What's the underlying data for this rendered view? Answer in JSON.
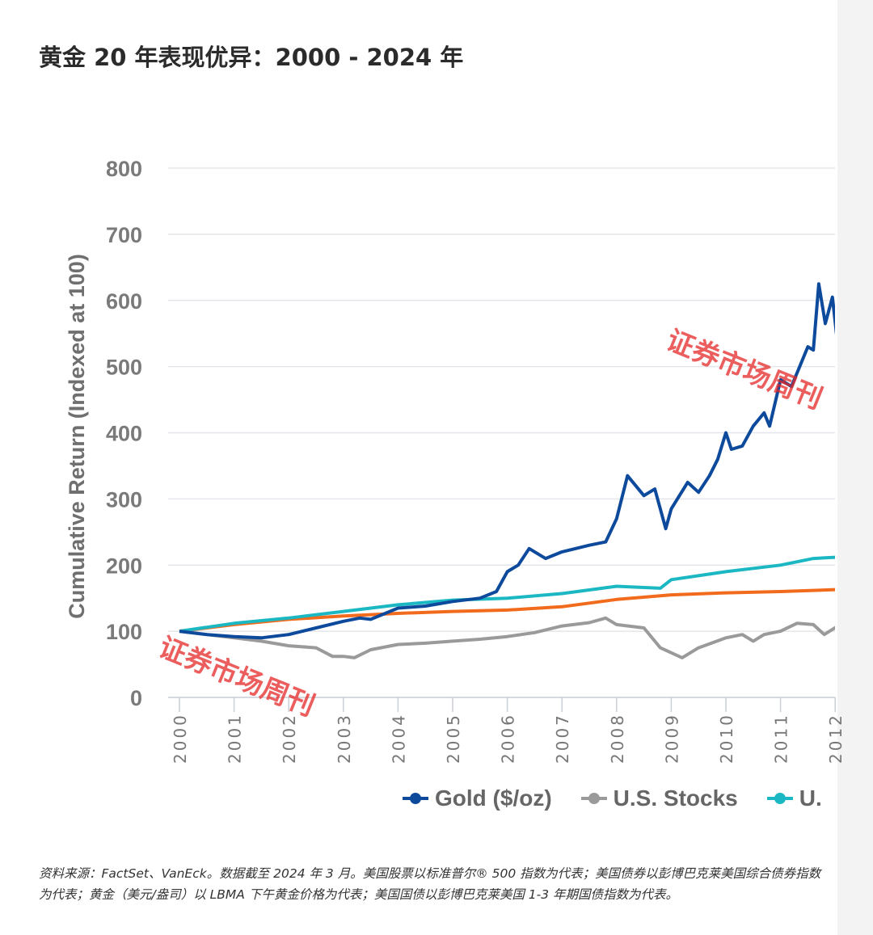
{
  "title": "黄金 20 年表现优异：2000 - 2024 年",
  "legend": [
    "Gold ($/oz)",
    "U.S. Stocks",
    "U."
  ],
  "note": "资料来源：FactSet、VanEck。数据截至 2024 年 3 月。美国股票以标准普尔® 500 指数为代表；美国债券以彭博巴克莱美国综合债券指数为代表；黄金（美元/盎司）以 LBMA 下午黄金价格为代表；美国国债以彭博巴克莱美国 1-3 年期国债指数为代表。",
  "watermark": "证券市场周刊",
  "chart_data": {
    "type": "line",
    "title": "",
    "xlabel": "",
    "ylabel": "Cumulative Return (Indexed at 100)",
    "ylim": [
      0,
      800
    ],
    "yticks": [
      0,
      100,
      200,
      300,
      400,
      500,
      600,
      700,
      800
    ],
    "xticks": [
      "2000",
      "2001",
      "2002",
      "2003",
      "2004",
      "2005",
      "2006",
      "2007",
      "2008",
      "2009",
      "2010",
      "2011",
      "2012"
    ],
    "grid": "horizontal",
    "legend_position": "bottom",
    "series": [
      {
        "name": "Gold ($/oz)",
        "color": "#0d4a9c",
        "points": [
          [
            2000,
            100
          ],
          [
            2000.5,
            95
          ],
          [
            2001,
            92
          ],
          [
            2001.5,
            90
          ],
          [
            2002,
            95
          ],
          [
            2002.5,
            105
          ],
          [
            2003,
            115
          ],
          [
            2003.3,
            120
          ],
          [
            2003.5,
            118
          ],
          [
            2004,
            135
          ],
          [
            2004.5,
            138
          ],
          [
            2005,
            145
          ],
          [
            2005.5,
            150
          ],
          [
            2005.8,
            160
          ],
          [
            2006,
            190
          ],
          [
            2006.2,
            200
          ],
          [
            2006.4,
            225
          ],
          [
            2006.7,
            210
          ],
          [
            2007,
            220
          ],
          [
            2007.5,
            230
          ],
          [
            2007.8,
            235
          ],
          [
            2008,
            270
          ],
          [
            2008.2,
            335
          ],
          [
            2008.5,
            305
          ],
          [
            2008.7,
            315
          ],
          [
            2008.9,
            255
          ],
          [
            2009,
            285
          ],
          [
            2009.3,
            325
          ],
          [
            2009.5,
            310
          ],
          [
            2009.7,
            335
          ],
          [
            2009.85,
            360
          ],
          [
            2010,
            400
          ],
          [
            2010.1,
            375
          ],
          [
            2010.3,
            380
          ],
          [
            2010.5,
            410
          ],
          [
            2010.7,
            430
          ],
          [
            2010.8,
            410
          ],
          [
            2011,
            480
          ],
          [
            2011.2,
            470
          ],
          [
            2011.35,
            500
          ],
          [
            2011.5,
            530
          ],
          [
            2011.6,
            525
          ],
          [
            2011.7,
            625
          ],
          [
            2011.82,
            565
          ],
          [
            2011.95,
            605
          ],
          [
            2012.05,
            530
          ]
        ]
      },
      {
        "name": "U.S. Stocks",
        "color": "#9a9a9a",
        "points": [
          [
            2000,
            100
          ],
          [
            2000.5,
            95
          ],
          [
            2001,
            90
          ],
          [
            2001.5,
            85
          ],
          [
            2002,
            78
          ],
          [
            2002.5,
            75
          ],
          [
            2002.8,
            62
          ],
          [
            2003,
            62
          ],
          [
            2003.2,
            60
          ],
          [
            2003.5,
            72
          ],
          [
            2004,
            80
          ],
          [
            2004.5,
            82
          ],
          [
            2005,
            85
          ],
          [
            2005.5,
            88
          ],
          [
            2006,
            92
          ],
          [
            2006.5,
            98
          ],
          [
            2007,
            108
          ],
          [
            2007.5,
            113
          ],
          [
            2007.8,
            120
          ],
          [
            2008,
            110
          ],
          [
            2008.5,
            105
          ],
          [
            2008.8,
            75
          ],
          [
            2009.2,
            60
          ],
          [
            2009.5,
            75
          ],
          [
            2010,
            90
          ],
          [
            2010.3,
            95
          ],
          [
            2010.5,
            85
          ],
          [
            2010.7,
            95
          ],
          [
            2011,
            100
          ],
          [
            2011.3,
            112
          ],
          [
            2011.6,
            110
          ],
          [
            2011.8,
            95
          ],
          [
            2012.05,
            108
          ]
        ]
      },
      {
        "name": "",
        "color": "#1bb8c4",
        "points": [
          [
            2000,
            100
          ],
          [
            2001,
            112
          ],
          [
            2002,
            120
          ],
          [
            2003,
            130
          ],
          [
            2004,
            140
          ],
          [
            2005,
            147
          ],
          [
            2006,
            150
          ],
          [
            2007,
            157
          ],
          [
            2008,
            168
          ],
          [
            2008.8,
            165
          ],
          [
            2009,
            178
          ],
          [
            2010,
            190
          ],
          [
            2011,
            200
          ],
          [
            2011.6,
            210
          ],
          [
            2012.05,
            212
          ]
        ]
      },
      {
        "name": "",
        "color": "#f26b1d",
        "points": [
          [
            2000,
            100
          ],
          [
            2001,
            110
          ],
          [
            2002,
            118
          ],
          [
            2003,
            123
          ],
          [
            2004,
            127
          ],
          [
            2005,
            130
          ],
          [
            2006,
            132
          ],
          [
            2007,
            137
          ],
          [
            2008,
            148
          ],
          [
            2009,
            155
          ],
          [
            2010,
            158
          ],
          [
            2011,
            160
          ],
          [
            2012.05,
            163
          ]
        ]
      }
    ]
  }
}
